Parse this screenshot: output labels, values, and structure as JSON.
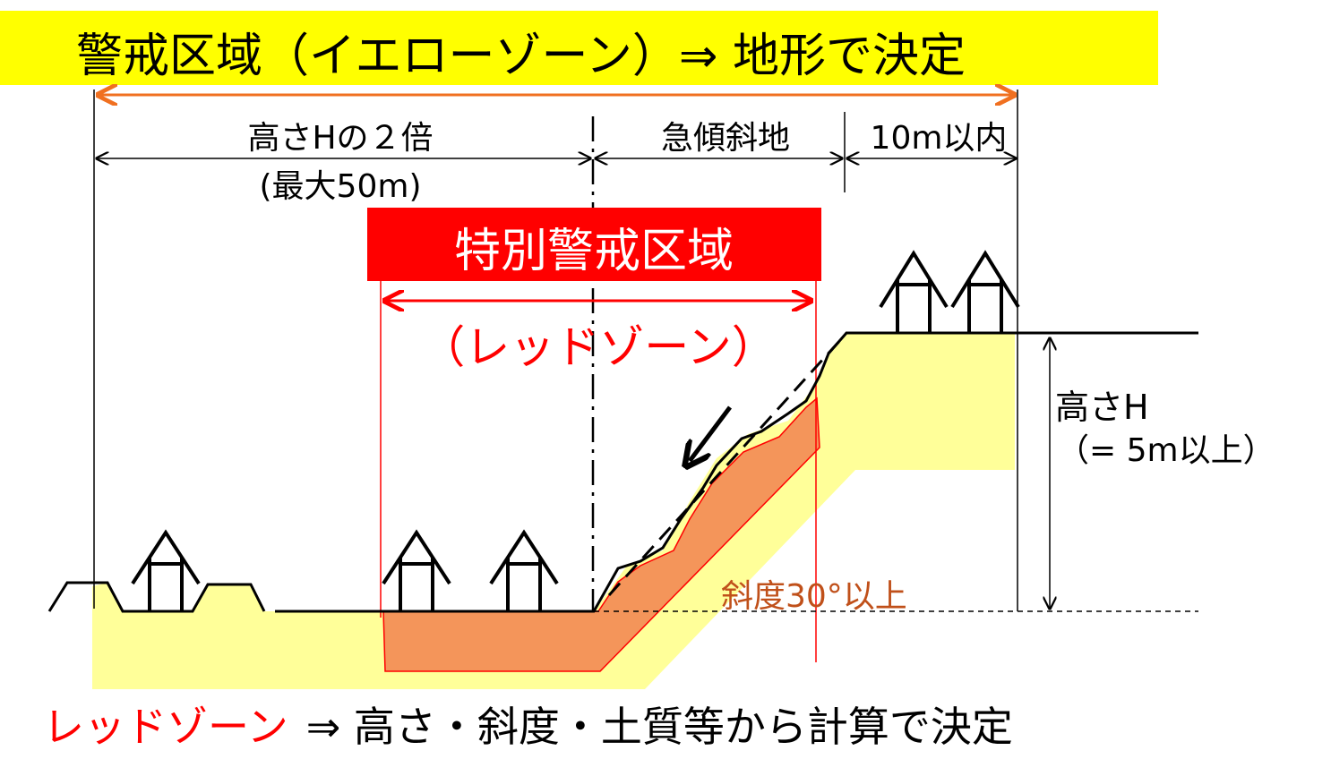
{
  "title": "警戒区域（イエローゾーン）⇒ 地形で決定",
  "dimensions": {
    "twice_height": "高さHの２倍",
    "max": "(最大50m)",
    "steep_slope": "急傾斜地",
    "within_10m": "10m以内"
  },
  "special_zone": {
    "title": "特別警戒区域",
    "subtitle": "（レッドゾーン）"
  },
  "height": {
    "label": "高さH",
    "condition": "（= 5m以上）"
  },
  "slope_label": "斜度30°以上",
  "footer": {
    "red_part": "レッドゾーン",
    "rest": "⇒ 高さ・斜度・土質等から計算で決定"
  },
  "colors": {
    "yellow_banner": "#ffff00",
    "yellow_zone": "#ffff99",
    "red": "#ff0000",
    "red_zone_fill": "#f4955a",
    "orange_arrow": "#f07020",
    "slope_text": "#c0501a"
  }
}
